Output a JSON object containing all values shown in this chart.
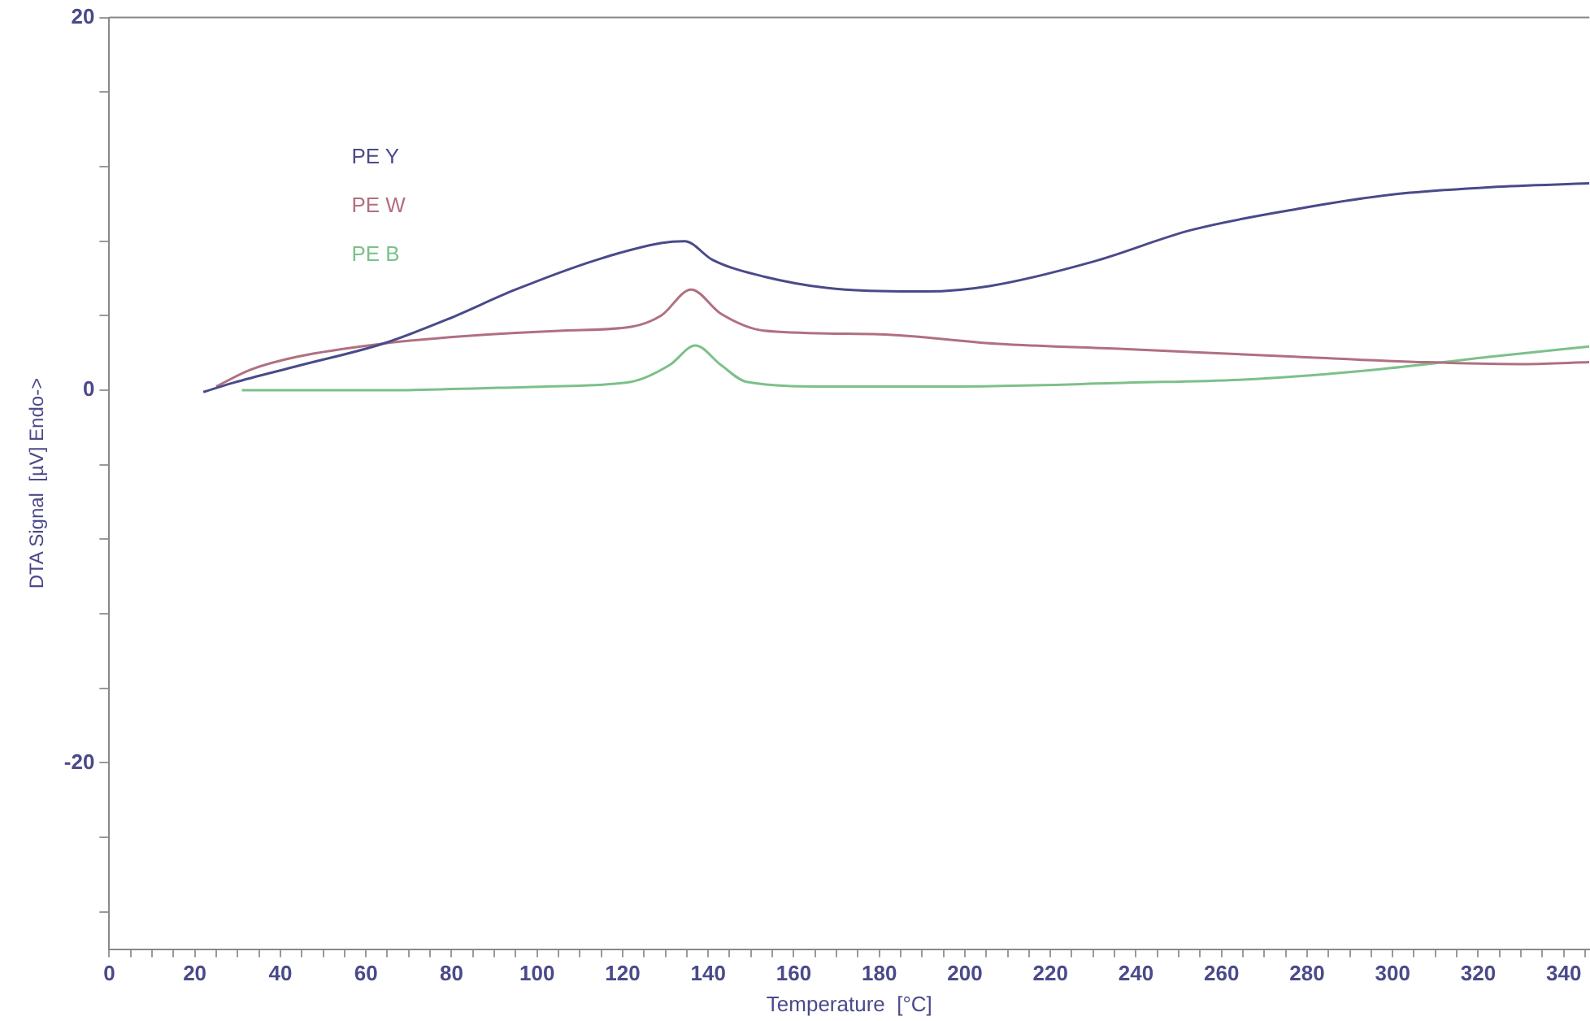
{
  "chart_data": {
    "type": "line",
    "xlabel": "Temperature  [°C]",
    "ylabel": "DTA Signal  [µV] Endo->",
    "xlim": [
      0,
      346
    ],
    "ylim": [
      -30,
      20
    ],
    "xticks": [
      0,
      {
        "value": 5,
        "label": null
      },
      {
        "value": 10,
        "label": null
      },
      {
        "value": 15,
        "label": null
      },
      20,
      {
        "value": 25,
        "label": null
      },
      {
        "value": 30,
        "label": null
      },
      {
        "value": 35,
        "label": null
      },
      40,
      {
        "value": 45,
        "label": null
      },
      {
        "value": 50,
        "label": null
      },
      {
        "value": 55,
        "label": null
      },
      60,
      {
        "value": 65,
        "label": null
      },
      {
        "value": 70,
        "label": null
      },
      {
        "value": 75,
        "label": null
      },
      80,
      {
        "value": 85,
        "label": null
      },
      {
        "value": 90,
        "label": null
      },
      {
        "value": 95,
        "label": null
      },
      100,
      {
        "value": 105,
        "label": null
      },
      {
        "value": 110,
        "label": null
      },
      {
        "value": 115,
        "label": null
      },
      120,
      {
        "value": 125,
        "label": null
      },
      {
        "value": 130,
        "label": null
      },
      {
        "value": 135,
        "label": null
      },
      140,
      {
        "value": 145,
        "label": null
      },
      {
        "value": 150,
        "label": null
      },
      {
        "value": 155,
        "label": null
      },
      160,
      {
        "value": 165,
        "label": null
      },
      {
        "value": 170,
        "label": null
      },
      {
        "value": 175,
        "label": null
      },
      180,
      {
        "value": 185,
        "label": null
      },
      {
        "value": 190,
        "label": null
      },
      {
        "value": 195,
        "label": null
      },
      200,
      {
        "value": 205,
        "label": null
      },
      {
        "value": 210,
        "label": null
      },
      {
        "value": 215,
        "label": null
      },
      220,
      {
        "value": 225,
        "label": null
      },
      {
        "value": 230,
        "label": null
      },
      {
        "value": 235,
        "label": null
      },
      240,
      {
        "value": 245,
        "label": null
      },
      {
        "value": 250,
        "label": null
      },
      {
        "value": 255,
        "label": null
      },
      260,
      {
        "value": 265,
        "label": null
      },
      {
        "value": 270,
        "label": null
      },
      {
        "value": 275,
        "label": null
      },
      280,
      {
        "value": 285,
        "label": null
      },
      {
        "value": 290,
        "label": null
      },
      {
        "value": 295,
        "label": null
      },
      300,
      {
        "value": 305,
        "label": null
      },
      {
        "value": 310,
        "label": null
      },
      {
        "value": 315,
        "label": null
      },
      320,
      {
        "value": 325,
        "label": null
      },
      {
        "value": 330,
        "label": null
      },
      {
        "value": 335,
        "label": null
      },
      340,
      {
        "value": 345,
        "label": null
      }
    ],
    "yticks": [
      {
        "value": -28,
        "label": null
      },
      {
        "value": -24,
        "label": null
      },
      -20,
      {
        "value": -16,
        "label": null
      },
      {
        "value": -12,
        "label": null
      },
      {
        "value": -8,
        "label": null
      },
      {
        "value": -4,
        "label": null
      },
      0,
      {
        "value": 4,
        "label": null
      },
      {
        "value": 8,
        "label": null
      },
      {
        "value": 12,
        "label": null
      },
      {
        "value": 16,
        "label": null
      },
      20
    ],
    "grid": false,
    "legend": "top left",
    "marker": "none",
    "line_style": "solid",
    "series": [
      {
        "name": "PE Y",
        "color": "#4a4a8a",
        "x": [
          22,
          29,
          44,
          64,
          79,
          95,
          114,
          129,
          134.5,
          141,
          153,
          172,
          191,
          206,
          230,
          253,
          277,
          300,
          323,
          346
        ],
        "values": [
          -0.1,
          0.4,
          1.3,
          2.5,
          3.8,
          5.4,
          7.0,
          7.9,
          8.0,
          7.0,
          6.1,
          5.4,
          5.3,
          5.6,
          6.9,
          8.6,
          9.7,
          10.5,
          10.9,
          11.1
        ]
      },
      {
        "name": "PE W",
        "color": "#b07080",
        "x": [
          25,
          33,
          44,
          64,
          83,
          106,
          122,
          129,
          136,
          143,
          153,
          180,
          207,
          238,
          277,
          308,
          331,
          346
        ],
        "values": [
          0.2,
          1.1,
          1.8,
          2.5,
          2.9,
          3.2,
          3.4,
          4.0,
          5.4,
          4.1,
          3.2,
          3.0,
          2.5,
          2.2,
          1.8,
          1.5,
          1.4,
          1.5
        ]
      },
      {
        "name": "PE B",
        "color": "#7cc08a",
        "x": [
          31,
          64,
          102,
          122,
          131,
          137,
          143,
          149,
          168,
          199,
          238,
          268,
          296,
          323,
          346
        ],
        "values": [
          0,
          0,
          0.2,
          0.45,
          1.35,
          2.4,
          1.35,
          0.45,
          0.2,
          0.2,
          0.4,
          0.6,
          1.1,
          1.8,
          2.35
        ]
      }
    ]
  }
}
